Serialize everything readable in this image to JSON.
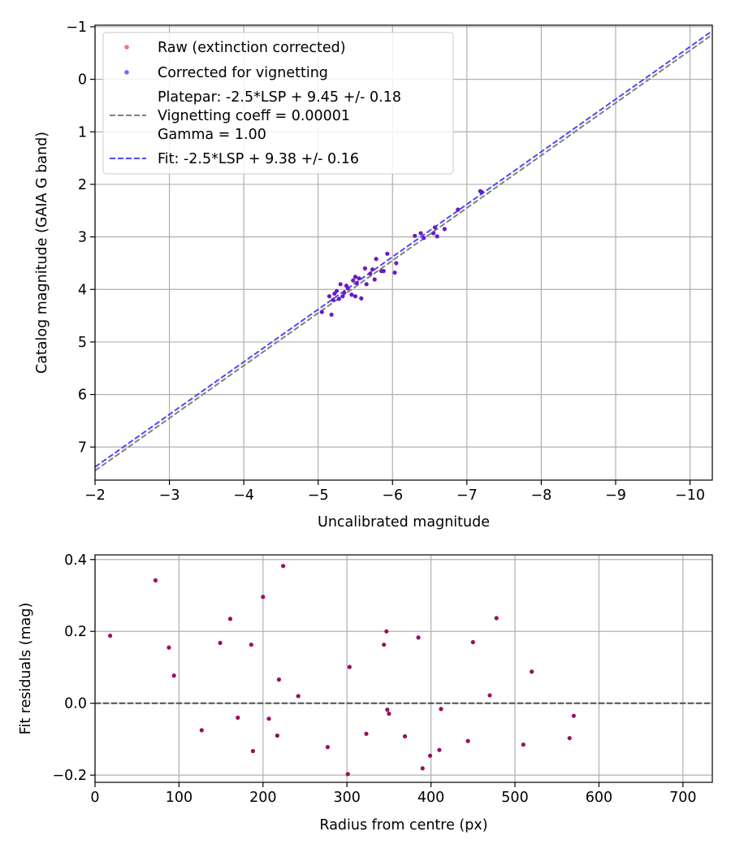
{
  "chart_data": [
    {
      "type": "scatter",
      "xlabel": "Uncalibrated magnitude",
      "ylabel": "Catalog magnitude (GAIA G band)",
      "xlim": [
        -2,
        -10.3
      ],
      "ylim": [
        7.63,
        -1.03
      ],
      "x_inverted": true,
      "y_inverted": true,
      "xticks": [
        -2,
        -3,
        -4,
        -5,
        -6,
        -7,
        -8,
        -9,
        -10
      ],
      "xtick_labels": [
        "−2",
        "−3",
        "−4",
        "−5",
        "−6",
        "−7",
        "−8",
        "−9",
        "−10"
      ],
      "yticks": [
        -1,
        0,
        1,
        2,
        3,
        4,
        5,
        6,
        7
      ],
      "ytick_labels": [
        "−1",
        "0",
        "1",
        "2",
        "3",
        "4",
        "5",
        "6",
        "7"
      ],
      "grid": true,
      "legend_position": "top-left",
      "legend": [
        {
          "label": "Raw (extinction corrected)",
          "kind": "marker",
          "color": "#ff6f6f"
        },
        {
          "label": "Corrected for vignetting",
          "kind": "marker",
          "color": "#6c6cff"
        },
        {
          "label_lines": [
            "Platepar: -2.5*LSP + 9.45 +/- 0.18",
            "Vignetting coeff = 0.00001",
            "Gamma = 1.00"
          ],
          "kind": "dashed",
          "color": "#808080"
        },
        {
          "label": "Fit: -2.5*LSP + 9.38 +/- 0.16",
          "kind": "dashed",
          "color": "#4a4aff"
        }
      ],
      "lines": [
        {
          "name": "Platepar",
          "color": "#808080",
          "x": [
            -2,
            -10.3
          ],
          "y": [
            7.45,
            -0.85
          ]
        },
        {
          "name": "Fit",
          "color": "#4a4aff",
          "x": [
            -2,
            -10.3
          ],
          "y": [
            7.38,
            -0.92
          ]
        }
      ],
      "series": [
        {
          "name": "Corrected for vignetting",
          "color": "#6a1bc4",
          "points": [
            [
              -5.05,
              4.43
            ],
            [
              -5.15,
              4.13
            ],
            [
              -5.18,
              4.48
            ],
            [
              -5.2,
              4.2
            ],
            [
              -5.22,
              4.08
            ],
            [
              -5.25,
              4.03
            ],
            [
              -5.28,
              4.18
            ],
            [
              -5.3,
              3.9
            ],
            [
              -5.33,
              4.13
            ],
            [
              -5.35,
              4.06
            ],
            [
              -5.38,
              3.93
            ],
            [
              -5.4,
              3.98
            ],
            [
              -5.45,
              4.1
            ],
            [
              -5.47,
              3.83
            ],
            [
              -5.5,
              3.76
            ],
            [
              -5.5,
              4.13
            ],
            [
              -5.52,
              3.88
            ],
            [
              -5.55,
              3.79
            ],
            [
              -5.58,
              4.17
            ],
            [
              -5.63,
              3.6
            ],
            [
              -5.65,
              3.9
            ],
            [
              -5.7,
              3.7
            ],
            [
              -5.73,
              3.62
            ],
            [
              -5.76,
              3.81
            ],
            [
              -5.78,
              3.42
            ],
            [
              -5.85,
              3.65
            ],
            [
              -5.88,
              3.65
            ],
            [
              -5.93,
              3.32
            ],
            [
              -6.03,
              3.68
            ],
            [
              -6.05,
              3.5
            ],
            [
              -6.3,
              2.98
            ],
            [
              -6.38,
              2.93
            ],
            [
              -6.42,
              3.02
            ],
            [
              -6.55,
              2.93
            ],
            [
              -6.57,
              2.82
            ],
            [
              -6.6,
              2.99
            ],
            [
              -6.7,
              2.85
            ],
            [
              -6.88,
              2.48
            ],
            [
              -7.18,
              2.13
            ],
            [
              -7.2,
              2.15
            ]
          ]
        }
      ]
    },
    {
      "type": "scatter",
      "xlabel": "Radius from centre (px)",
      "ylabel": "Fit residuals (mag)",
      "xlim": [
        0,
        735
      ],
      "ylim": [
        -0.22,
        0.413
      ],
      "xticks": [
        0,
        100,
        200,
        300,
        400,
        500,
        600,
        700
      ],
      "xtick_labels": [
        "0",
        "100",
        "200",
        "300",
        "400",
        "500",
        "600",
        "700"
      ],
      "yticks": [
        -0.2,
        0.0,
        0.2,
        0.4
      ],
      "ytick_labels": [
        "−0.2",
        "0.0",
        "0.2",
        "0.4"
      ],
      "grid": true,
      "reference_line": {
        "y": 0,
        "style": "dashed",
        "color": "#333333"
      },
      "series": [
        {
          "name": "Residuals",
          "color": "#9b0f5f",
          "points": [
            [
              18,
              0.188
            ],
            [
              72,
              0.342
            ],
            [
              88,
              0.155
            ],
            [
              94,
              0.077
            ],
            [
              127,
              -0.075
            ],
            [
              149,
              0.168
            ],
            [
              161,
              0.235
            ],
            [
              170,
              -0.04
            ],
            [
              186,
              0.163
            ],
            [
              188,
              -0.133
            ],
            [
              200,
              0.296
            ],
            [
              207,
              -0.043
            ],
            [
              217,
              -0.09
            ],
            [
              219,
              0.066
            ],
            [
              224,
              0.382
            ],
            [
              242,
              0.02
            ],
            [
              277,
              -0.122
            ],
            [
              301,
              -0.197
            ],
            [
              303,
              0.101
            ],
            [
              323,
              -0.085
            ],
            [
              344,
              0.163
            ],
            [
              347,
              0.2
            ],
            [
              348,
              -0.018
            ],
            [
              350,
              -0.029
            ],
            [
              369,
              -0.092
            ],
            [
              385,
              0.183
            ],
            [
              390,
              -0.181
            ],
            [
              399,
              -0.146
            ],
            [
              410,
              -0.13
            ],
            [
              412,
              -0.016
            ],
            [
              444,
              -0.105
            ],
            [
              450,
              0.17
            ],
            [
              470,
              0.022
            ],
            [
              478,
              0.237
            ],
            [
              510,
              -0.115
            ],
            [
              520,
              0.088
            ],
            [
              565,
              -0.097
            ],
            [
              570,
              -0.035
            ]
          ]
        }
      ]
    }
  ]
}
